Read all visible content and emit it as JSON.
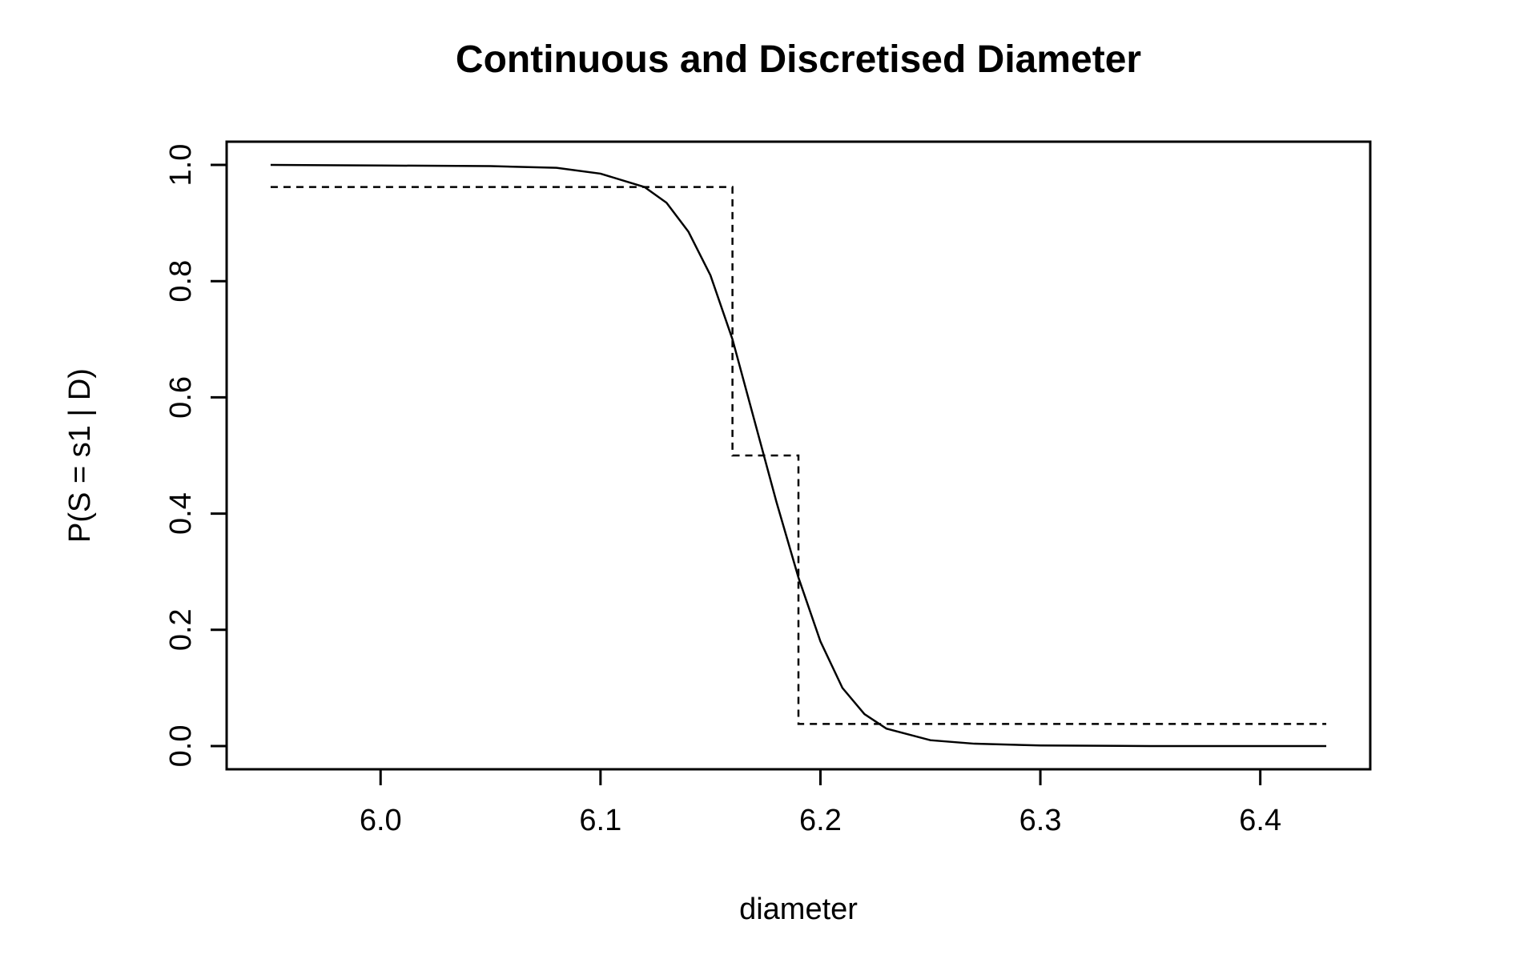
{
  "chart_data": {
    "type": "line",
    "title": "Continuous and Discretised Diameter",
    "xlabel": "diameter",
    "ylabel": "P(S = s1 | D)",
    "xlim": [
      5.93,
      6.45
    ],
    "ylim": [
      -0.04,
      1.04
    ],
    "x_ticks": [
      6.0,
      6.1,
      6.2,
      6.3,
      6.4
    ],
    "x_tick_labels": [
      "6.0",
      "6.1",
      "6.2",
      "6.3",
      "6.4"
    ],
    "y_ticks": [
      0.0,
      0.2,
      0.4,
      0.6,
      0.8,
      1.0
    ],
    "y_tick_labels": [
      "0.0",
      "0.2",
      "0.4",
      "0.6",
      "0.8",
      "1.0"
    ],
    "grid": false,
    "legend": false,
    "series": [
      {
        "style": "solid",
        "x": [
          5.95,
          6.0,
          6.05,
          6.08,
          6.1,
          6.12,
          6.13,
          6.14,
          6.15,
          6.16,
          6.17,
          6.18,
          6.19,
          6.2,
          6.21,
          6.22,
          6.23,
          6.25,
          6.27,
          6.3,
          6.35,
          6.4,
          6.43
        ],
        "y": [
          1.0,
          0.999,
          0.998,
          0.995,
          0.985,
          0.962,
          0.935,
          0.885,
          0.81,
          0.7,
          0.56,
          0.42,
          0.29,
          0.18,
          0.1,
          0.055,
          0.03,
          0.01,
          0.004,
          0.001,
          0.0,
          0.0,
          0.0
        ]
      },
      {
        "style": "dashed",
        "x": [
          5.95,
          6.16,
          6.16,
          6.19,
          6.19,
          6.43
        ],
        "y": [
          0.962,
          0.962,
          0.5,
          0.5,
          0.038,
          0.038
        ]
      }
    ]
  }
}
